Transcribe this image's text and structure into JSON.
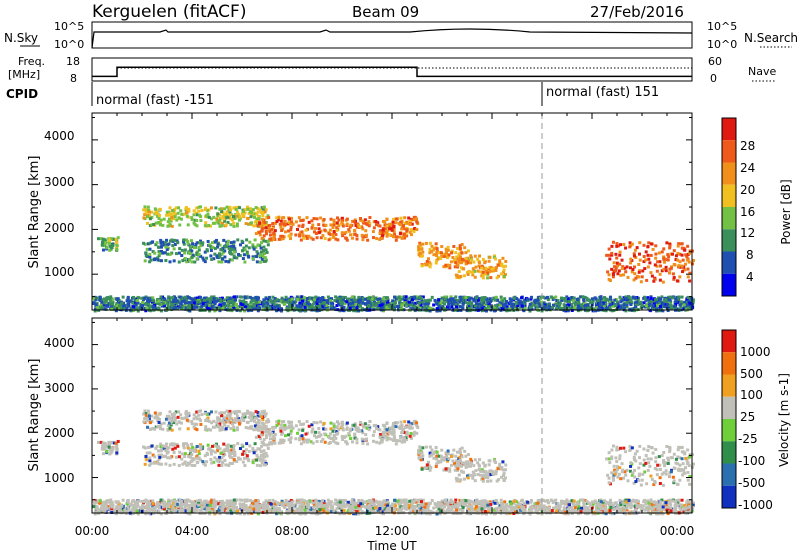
{
  "header": {
    "station": "Kerguelen (fitACF)",
    "beam": "Beam 09",
    "date": "27/Feb/2016"
  },
  "panels_top": {
    "nsky_label": "N.Sky",
    "nsearch_label": "N.Search",
    "noise_ticks": [
      "10^5",
      "10^0"
    ],
    "freq_label_1": "Freq.",
    "freq_label_2": "[MHz]",
    "freq_ticks": [
      "18",
      "8"
    ],
    "nave_ticks": [
      "60",
      "0"
    ],
    "nave_label": "Nave",
    "cpid_label": "CPID",
    "cpid_1": "normal (fast) -151",
    "cpid_2": "normal (fast) 151"
  },
  "axes": {
    "ylabel": "Slant Range [km]",
    "yticks": [
      "4000",
      "3000",
      "2000",
      "1000"
    ],
    "xticks": [
      "00:00",
      "04:00",
      "08:00",
      "12:00",
      "16:00",
      "20:00",
      "00:00"
    ],
    "xlabel": "Time UT"
  },
  "power_bar": {
    "label": "Power [dB]",
    "ticks": [
      "28",
      "24",
      "20",
      "16",
      "12",
      "8",
      "4"
    ]
  },
  "velocity_bar": {
    "label": "Velocity [m s-1]",
    "ticks": [
      "1000",
      "500",
      "100",
      "25",
      "-25",
      "-100",
      "-500",
      "-1000"
    ]
  },
  "colors": {
    "power": [
      "#0000ee",
      "#1f4fb0",
      "#3b8f5a",
      "#72c044",
      "#f0c020",
      "#f0901a",
      "#ef5a1a",
      "#e01a10"
    ],
    "velocity": [
      "#1030c0",
      "#2a6fb0",
      "#2f8f4a",
      "#6fcf3a",
      "#c0c0b8",
      "#f0a020",
      "#f07010",
      "#e01a10"
    ]
  },
  "chart_data": {
    "type": "heatmap",
    "x_unit": "hours UT",
    "xlim": [
      0,
      24
    ],
    "ylim": [
      200,
      4600
    ],
    "cpid_change_hour": 18,
    "frequency_mhz": [
      {
        "start": 0,
        "end": 1,
        "value": 10
      },
      {
        "start": 1,
        "end": 13,
        "value": 14
      },
      {
        "start": 13,
        "end": 24,
        "value": 10
      }
    ],
    "power_echo_bands": [
      {
        "start": 0.2,
        "end": 1,
        "center": 1700,
        "width": 150,
        "power_db": 12
      },
      {
        "start": 2,
        "end": 7,
        "center": 2320,
        "width": 220,
        "power_db": 16
      },
      {
        "start": 6.5,
        "end": 13,
        "center": 2050,
        "width": 260,
        "power_db": 24
      },
      {
        "start": 2,
        "end": 7,
        "center": 1550,
        "width": 250,
        "power_db": 10
      },
      {
        "start": 13,
        "end": 15,
        "center": 1450,
        "width": 280,
        "power_db": 22
      },
      {
        "start": 14.5,
        "end": 16.5,
        "center": 1200,
        "width": 250,
        "power_db": 20
      },
      {
        "start": 20.5,
        "end": 24,
        "center": 1300,
        "width": 450,
        "power_db": 26
      },
      {
        "start": 0,
        "end": 24,
        "center": 370,
        "width": 160,
        "power_db": 8
      }
    ]
  }
}
